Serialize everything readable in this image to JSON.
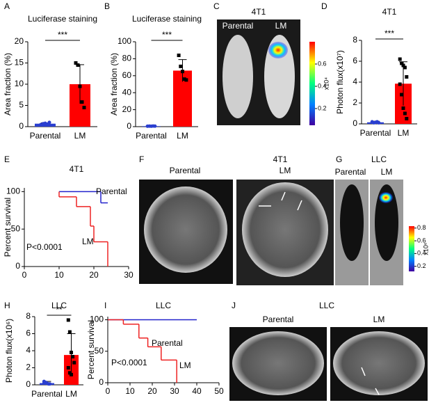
{
  "chart_data": [
    {
      "type": "bar",
      "panel_label": "A",
      "title": "Luciferase staining",
      "y_label": "Area fraction (%)",
      "categories": [
        "Parental",
        "LM"
      ],
      "values": [
        0.7,
        10
      ],
      "errors": [
        0.2,
        4.6
      ],
      "points": [
        [
          0.5,
          0.7,
          0.8,
          0.6,
          1.0,
          0.5
        ],
        [
          15,
          14.5,
          9.5,
          5.8,
          4.5
        ]
      ],
      "colors": [
        "#2a3fd0",
        "#ff0000"
      ],
      "significance": "***",
      "ylim": [
        0,
        20
      ],
      "yticks": [
        0,
        5,
        10,
        15,
        20
      ]
    },
    {
      "type": "bar",
      "panel_label": "B",
      "title": "Luciferase staining",
      "y_label": "Area fraction (%)",
      "categories": [
        "Parental",
        "LM"
      ],
      "values": [
        0.6,
        66
      ],
      "errors": [
        0.3,
        13
      ],
      "points": [
        [
          0.5,
          0.6,
          0.5,
          0.7,
          0.6
        ],
        [
          84,
          71,
          65,
          56,
          55
        ]
      ],
      "colors": [
        "#2a3fd0",
        "#ff0000"
      ],
      "significance": "***",
      "ylim": [
        0,
        100
      ],
      "yticks": [
        0,
        20,
        40,
        60,
        80,
        100
      ]
    },
    {
      "type": "bar",
      "panel_label": "D",
      "title": "4T1",
      "y_label": "Photon flux(x10⁷)",
      "categories": [
        "Parental",
        "LM"
      ],
      "values": [
        0.15,
        3.85
      ],
      "errors": [
        0.1,
        2.1
      ],
      "points": [
        [
          0.2,
          0.1,
          0.15,
          0.2,
          0.1
        ],
        [
          6.2,
          5.8,
          5.6,
          5.4,
          4.5,
          3.8,
          2.8,
          1.5,
          1.0,
          0.5
        ]
      ],
      "colors": [
        "#2a3fd0",
        "#ff0000"
      ],
      "significance": "***",
      "ylim": [
        0,
        8
      ],
      "yticks": [
        0,
        2,
        4,
        6,
        8
      ]
    },
    {
      "type": "step",
      "panel_label": "E",
      "title": "4T1",
      "y_label": "Percent survival",
      "series": [
        {
          "name": "Parental",
          "color": "#2222cc",
          "x": [
            10,
            22,
            24
          ],
          "values": [
            100,
            85,
            85
          ]
        },
        {
          "name": "LM",
          "color": "#ee2222",
          "x": [
            10,
            10,
            15,
            19,
            20,
            24
          ],
          "values": [
            100,
            93,
            80,
            54,
            33,
            0
          ]
        }
      ],
      "annotation": "P<0.0001",
      "xlim": [
        0,
        30
      ],
      "xticks": [
        0,
        10,
        20,
        30
      ],
      "ylim": [
        0,
        105
      ],
      "yticks": [
        0,
        50,
        100
      ]
    },
    {
      "type": "bar",
      "panel_label": "H",
      "title": "LLC",
      "y_label": "Photon flux(x10⁶)",
      "categories": [
        "Parental",
        "LM"
      ],
      "values": [
        0.2,
        3.5
      ],
      "errors": [
        0.2,
        2.5
      ],
      "points": [
        [
          0.4,
          0.3,
          0.2,
          0.1,
          0.1,
          0.2
        ],
        [
          7.6,
          6.2,
          3.8,
          3.3,
          2.6,
          2.0,
          1.4,
          1.2
        ]
      ],
      "colors": [
        "#2a3fd0",
        "#ff0000"
      ],
      "significance": "**",
      "ylim": [
        0,
        8
      ],
      "yticks": [
        0,
        2,
        4,
        6,
        8
      ]
    },
    {
      "type": "step",
      "panel_label": "I",
      "title": "LLC",
      "y_label": "Percent survival",
      "series": [
        {
          "name": "Parental",
          "color": "#2222cc",
          "x": [
            0,
            40
          ],
          "values": [
            100,
            100
          ]
        },
        {
          "name": "LM",
          "color": "#ee2222",
          "x": [
            0,
            7,
            14,
            18,
            24,
            31
          ],
          "values": [
            100,
            93,
            71,
            57,
            36,
            0
          ]
        }
      ],
      "annotation": "P<0.0001",
      "xlim": [
        0,
        50
      ],
      "xticks": [
        0,
        10,
        20,
        30,
        40,
        50
      ],
      "ylim": [
        0,
        105
      ],
      "yticks": [
        0,
        50,
        100
      ]
    }
  ],
  "images": {
    "C": {
      "panel_label": "C",
      "title": "4T1",
      "labels": [
        "Parental",
        "LM"
      ],
      "colorbar": {
        "lim": [
          0.05,
          0.8
        ],
        "ticks": [
          0.2,
          0.4,
          0.6
        ],
        "unit": "x10⁴"
      }
    },
    "F": {
      "panel_label": "F",
      "title": "4T1",
      "labels": [
        "Parental",
        "LM"
      ]
    },
    "G": {
      "panel_label": "G",
      "title": "LLC",
      "labels": [
        "Parental",
        "LM"
      ],
      "colorbar": {
        "lim": [
          0.12,
          0.83
        ],
        "ticks": [
          0.2,
          0.4,
          0.6,
          0.8
        ],
        "unit": "x10⁶"
      }
    },
    "J": {
      "panel_label": "J",
      "title": "LLC",
      "labels": [
        "Parental",
        "LM"
      ]
    }
  }
}
